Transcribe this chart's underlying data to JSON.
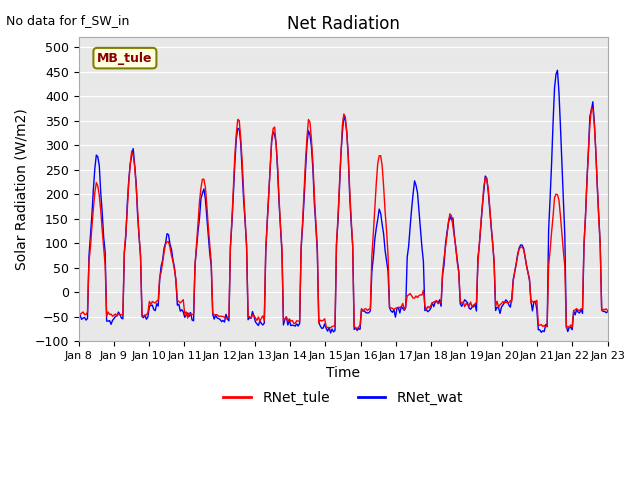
{
  "title": "Net Radiation",
  "xlabel": "Time",
  "ylabel": "Solar Radiation (W/m2)",
  "top_left_text": "No data for f_SW_in",
  "legend_label1": "RNet_tule",
  "legend_label2": "RNet_wat",
  "legend_box_label": "MB_tule",
  "color1": "#ff0000",
  "color2": "#0000ff",
  "ylim": [
    -100,
    520
  ],
  "yticks": [
    -100,
    -50,
    0,
    50,
    100,
    150,
    200,
    250,
    300,
    350,
    400,
    450,
    500
  ],
  "plot_bg_color": "#e8e8e8",
  "linewidth": 1.0
}
